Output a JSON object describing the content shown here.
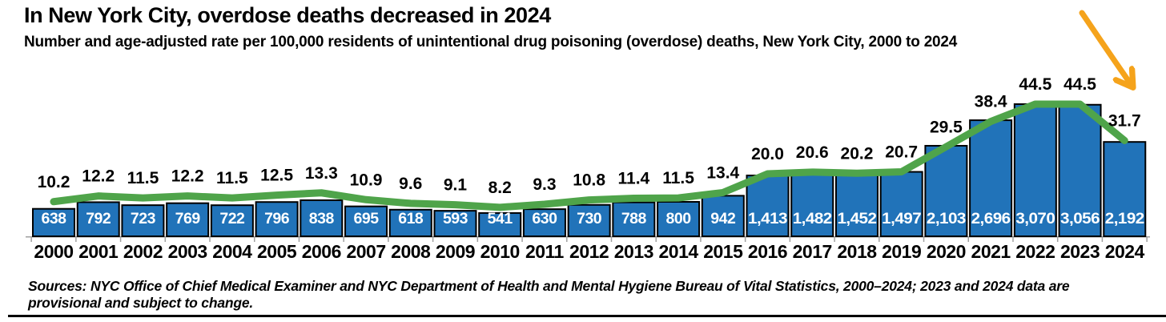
{
  "header": {
    "title": "In New York City, overdose deaths decreased in 2024",
    "subtitle": "Number and age-adjusted rate per 100,000 residents of unintentional drug poisoning (overdose) deaths, New York City, 2000 to 2024"
  },
  "footer": {
    "source_line1": "Sources: NYC Office of Chief Medical Examiner and NYC Department of Health and Mental Hygiene Bureau of Vital Statistics, 2000–2024; 2023 and 2024 data are",
    "source_line2": "provisional and subject to change."
  },
  "colors": {
    "bar_fill": "#2173b9",
    "bar_border": "#000000",
    "line": "#4fa44a",
    "arrow": "#f5a31b",
    "count_label": "#ffffff",
    "text": "#000000",
    "axis": "#a0a0a0"
  },
  "chart_data": {
    "type": "bar",
    "title": "In New York City, overdose deaths decreased in 2024",
    "subtitle": "Number and age-adjusted rate per 100,000 residents of unintentional drug poisoning (overdose) deaths, New York City, 2000 to 2024",
    "categories": [
      "2000",
      "2001",
      "2002",
      "2003",
      "2004",
      "2005",
      "2006",
      "2007",
      "2008",
      "2009",
      "2010",
      "2011",
      "2012",
      "2013",
      "2014",
      "2015",
      "2016",
      "2017",
      "2018",
      "2019",
      "2020",
      "2021",
      "2022",
      "2023",
      "2024"
    ],
    "series": [
      {
        "name": "Number of unintentional drug poisoning (overdose) deaths",
        "type": "bar",
        "values": [
          638,
          792,
          723,
          769,
          722,
          796,
          838,
          695,
          618,
          593,
          541,
          630,
          730,
          788,
          800,
          942,
          1413,
          1482,
          1452,
          1497,
          2103,
          2696,
          3070,
          3056,
          2192
        ],
        "labels": [
          "638",
          "792",
          "723",
          "769",
          "722",
          "796",
          "838",
          "695",
          "618",
          "593",
          "541",
          "630",
          "730",
          "788",
          "800",
          "942",
          "1,413",
          "1,482",
          "1,452",
          "1,497",
          "2,103",
          "2,696",
          "3,070",
          "3,056",
          "2,192"
        ]
      },
      {
        "name": "Age-adjusted rate per 100,000 residents",
        "type": "line",
        "values": [
          10.2,
          12.2,
          11.5,
          12.2,
          11.5,
          12.5,
          13.3,
          10.9,
          9.6,
          9.1,
          8.2,
          9.3,
          10.8,
          11.4,
          11.5,
          13.4,
          20.0,
          20.6,
          20.2,
          20.7,
          29.5,
          38.4,
          44.5,
          44.5,
          31.7
        ],
        "labels": [
          "10.2",
          "12.2",
          "11.5",
          "12.2",
          "11.5",
          "12.5",
          "13.3",
          "10.9",
          "9.6",
          "9.1",
          "8.2",
          "9.3",
          "10.8",
          "11.4",
          "11.5",
          "13.4",
          "20.0",
          "20.6",
          "20.2",
          "20.7",
          "29.5",
          "38.4",
          "44.5",
          "44.5",
          "31.7"
        ]
      }
    ],
    "annotations": [
      {
        "type": "arrow",
        "meaning": "highlights the 2024 decrease",
        "points_at": "2024",
        "color": "#f5a31b"
      }
    ],
    "axes": {
      "x": {
        "label": ""
      },
      "y": {
        "visible": false
      }
    },
    "legend": "none",
    "grid": false
  }
}
